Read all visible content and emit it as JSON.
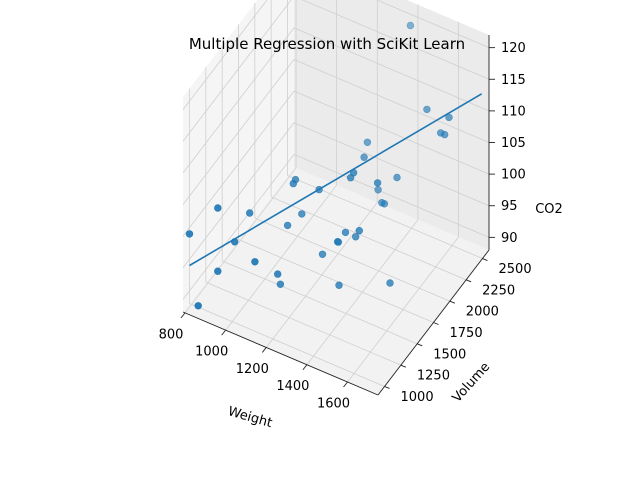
{
  "chart_data": {
    "type": "scatter",
    "projection": "3d",
    "title": "Multiple Regression with SciKit Learn",
    "xlabel": "Weight",
    "ylabel": "Volume",
    "zlabel": "CO2",
    "xlim": [
      790,
      1750
    ],
    "ylim": [
      900,
      2600
    ],
    "zlim": [
      88,
      122
    ],
    "xticks": [
      "800",
      "1000",
      "1200",
      "1400",
      "1600"
    ],
    "yticks": [
      "1000",
      "1250",
      "1500",
      "1750",
      "2000",
      "2250",
      "2500"
    ],
    "zticks": [
      "90",
      "95",
      "100",
      "105",
      "110",
      "115",
      "120"
    ],
    "grid": true,
    "marker_color": "#1f77b4",
    "line_color": "#1f77b4",
    "points": [
      {
        "x": 790,
        "y": 1000,
        "z": 99
      },
      {
        "x": 1160,
        "y": 1200,
        "z": 95
      },
      {
        "x": 929,
        "y": 1000,
        "z": 95
      },
      {
        "x": 865,
        "y": 900,
        "z": 90
      },
      {
        "x": 1140,
        "y": 1500,
        "z": 105
      },
      {
        "x": 929,
        "y": 1000,
        "z": 105
      },
      {
        "x": 1109,
        "y": 1400,
        "z": 90
      },
      {
        "x": 1365,
        "y": 1500,
        "z": 92
      },
      {
        "x": 1112,
        "y": 1500,
        "z": 98
      },
      {
        "x": 1150,
        "y": 1600,
        "z": 99
      },
      {
        "x": 980,
        "y": 1100,
        "z": 99
      },
      {
        "x": 990,
        "y": 1300,
        "z": 101
      },
      {
        "x": 1112,
        "y": 1000,
        "z": 99
      },
      {
        "x": 1252,
        "y": 1600,
        "z": 94
      },
      {
        "x": 1326,
        "y": 1600,
        "z": 97
      },
      {
        "x": 1330,
        "y": 1600,
        "z": 97
      },
      {
        "x": 1365,
        "y": 1600,
        "z": 99
      },
      {
        "x": 1280,
        "y": 2200,
        "z": 104
      },
      {
        "x": 1119,
        "y": 1600,
        "z": 104
      },
      {
        "x": 1328,
        "y": 2000,
        "z": 105
      },
      {
        "x": 1584,
        "y": 1600,
        "z": 94
      },
      {
        "x": 1428,
        "y": 2000,
        "z": 99
      },
      {
        "x": 1365,
        "y": 2100,
        "z": 99
      },
      {
        "x": 1415,
        "y": 1600,
        "z": 99
      },
      {
        "x": 1415,
        "y": 2000,
        "z": 99
      },
      {
        "x": 1465,
        "y": 1500,
        "z": 102
      },
      {
        "x": 1490,
        "y": 2000,
        "z": 104
      },
      {
        "x": 1725,
        "y": 2000,
        "z": 114
      },
      {
        "x": 1523,
        "y": 1600,
        "z": 109
      },
      {
        "x": 1705,
        "y": 2000,
        "z": 114
      },
      {
        "x": 1605,
        "y": 2100,
        "z": 115
      },
      {
        "x": 1746,
        "y": 2000,
        "z": 117
      },
      {
        "x": 1235,
        "y": 1600,
        "z": 104
      },
      {
        "x": 1390,
        "y": 1600,
        "z": 108
      },
      {
        "x": 1405,
        "y": 1600,
        "z": 109
      },
      {
        "x": 1395,
        "y": 2500,
        "z": 120
      }
    ],
    "regression_line": [
      {
        "x": 790,
        "y": 1000,
        "z": 94.0
      },
      {
        "x": 1746,
        "y": 2500,
        "z": 114.0
      }
    ]
  }
}
